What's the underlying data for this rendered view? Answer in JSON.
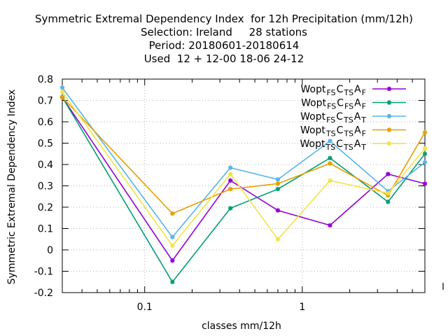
{
  "chart_data": {
    "type": "line",
    "title_lines": [
      "Symmetric Extremal Dependency Index  for 12h Precipitation (mm/12h)",
      "Selection: Ireland     28 stations",
      "Period: 20180601-20180614",
      "Used  12 + 12-00 18-06 24-12"
    ],
    "xlabel": "classes mm/12h",
    "ylabel": "Symmetric Extremal Dependency Index",
    "x_scale": "log",
    "xlim": [
      0.03,
      6
    ],
    "ylim": [
      -0.2,
      0.8
    ],
    "x_ticks": [
      0.1,
      1
    ],
    "x_tick_labels": [
      "0.1",
      "1"
    ],
    "y_ticks": [
      -0.2,
      -0.1,
      0,
      0.1,
      0.2,
      0.3,
      0.4,
      0.5,
      0.6,
      0.7,
      0.8
    ],
    "y_tick_labels": [
      "-0.2",
      "-0.1",
      "0",
      "0.1",
      "0.2",
      "0.3",
      "0.4",
      "0.5",
      "0.6",
      "0.7",
      "0.8"
    ],
    "grid": true,
    "legend_position": "top-right",
    "x": [
      0.03,
      0.15,
      0.35,
      0.7,
      1.5,
      3.5,
      6
    ],
    "series": [
      {
        "name": "Wopt_FS C_TS A_F",
        "legend": {
          "base": "Wopt",
          "s1": "FS",
          "c": "C",
          "s2": "TS",
          "a": "A",
          "s3": "F"
        },
        "color": "#9400d3",
        "values": [
          0.715,
          -0.05,
          0.325,
          0.185,
          0.115,
          0.355,
          0.31
        ]
      },
      {
        "name": "Wopt_FS C_FS A_F",
        "legend": {
          "base": "Wopt",
          "s1": "FS",
          "c": "C",
          "s2": "FS",
          "a": "A",
          "s3": "F"
        },
        "color": "#009e73",
        "values": [
          0.715,
          -0.15,
          0.195,
          0.285,
          0.43,
          0.225,
          0.45
        ]
      },
      {
        "name": "Wopt_FS C_TS A_T",
        "legend": {
          "base": "Wopt",
          "s1": "FS",
          "c": "C",
          "s2": "TS",
          "a": "A",
          "s3": "T"
        },
        "color": "#56b4e9",
        "values": [
          0.76,
          0.06,
          0.385,
          0.33,
          0.51,
          0.275,
          0.41
        ]
      },
      {
        "name": "Wopt_TS C_TS A_F",
        "legend": {
          "base": "Wopt",
          "s1": "TS",
          "c": "C",
          "s2": "TS",
          "a": "A",
          "s3": "F"
        },
        "color": "#e69f00",
        "values": [
          0.715,
          0.17,
          0.285,
          0.31,
          0.405,
          0.255,
          0.55
        ]
      },
      {
        "name": "Wopt_TS C_TS A_T",
        "legend": {
          "base": "Wopt",
          "s1": "TS",
          "c": "C",
          "s2": "TS",
          "a": "A",
          "s3": "T"
        },
        "color": "#f0e442",
        "values": [
          0.74,
          0.02,
          0.355,
          0.05,
          0.325,
          0.265,
          0.475
        ]
      }
    ]
  }
}
